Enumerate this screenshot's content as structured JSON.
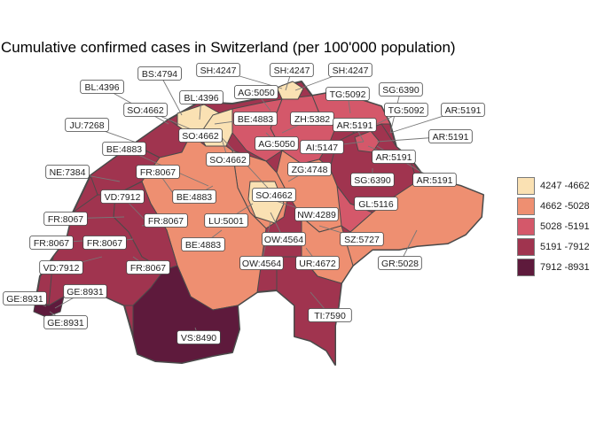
{
  "title": "Cumulative confirmed cases in Switzerland (per 100'000 population)",
  "colors": {
    "class1": "#fae1b3",
    "class2": "#ee8f71",
    "class3": "#d4586a",
    "class4": "#a0344f",
    "class5": "#5e1a3c",
    "border": "#4a4a4a",
    "leader": "#777777"
  },
  "legend": [
    {
      "label": "4247 -4662",
      "color": "#fae1b3"
    },
    {
      "label": "4662 -5028",
      "color": "#ee8f71"
    },
    {
      "label": "5028 -5191",
      "color": "#d4586a"
    },
    {
      "label": "5191 -7912",
      "color": "#a0344f"
    },
    {
      "label": "7912 -8931",
      "color": "#5e1a3c"
    }
  ],
  "labels": [
    {
      "text": "BS:4794"
    },
    {
      "text": "SH:4247"
    },
    {
      "text": "SH:4247"
    },
    {
      "text": "SH:4247"
    },
    {
      "text": "BL:4396"
    },
    {
      "text": "BL:4396"
    },
    {
      "text": "AG:5050"
    },
    {
      "text": "TG:5092"
    },
    {
      "text": "SG:6390"
    },
    {
      "text": "SO:4662"
    },
    {
      "text": "BE:4883"
    },
    {
      "text": "TG:5092"
    },
    {
      "text": "AR:5191"
    },
    {
      "text": "JU:7268"
    },
    {
      "text": "ZH:5382"
    },
    {
      "text": "AR:5191"
    },
    {
      "text": "SO:4662"
    },
    {
      "text": "AR:5191"
    },
    {
      "text": "BE:4883"
    },
    {
      "text": "AG:5050"
    },
    {
      "text": "AI:5147"
    },
    {
      "text": "SO:4662"
    },
    {
      "text": "AR:5191"
    },
    {
      "text": "NE:7384"
    },
    {
      "text": "FR:8067"
    },
    {
      "text": "ZG:4748"
    },
    {
      "text": "SG:6390"
    },
    {
      "text": "AR:5191"
    },
    {
      "text": "VD:7912"
    },
    {
      "text": "BE:4883"
    },
    {
      "text": "SO:4662"
    },
    {
      "text": "FR:8067"
    },
    {
      "text": "FR:8067"
    },
    {
      "text": "LU:5001"
    },
    {
      "text": "NW:4289"
    },
    {
      "text": "GL:5116"
    },
    {
      "text": "FR:8067"
    },
    {
      "text": "FR:8067"
    },
    {
      "text": "BE:4883"
    },
    {
      "text": "OW:4564"
    },
    {
      "text": "SZ:5727"
    },
    {
      "text": "VD:7912"
    },
    {
      "text": "FR:8067"
    },
    {
      "text": "OW:4564"
    },
    {
      "text": "UR:4672"
    },
    {
      "text": "GR:5028"
    },
    {
      "text": "GE:8931"
    },
    {
      "text": "GE:8931"
    },
    {
      "text": "TI:7590"
    },
    {
      "text": "GE:8931"
    },
    {
      "text": "VS:8490"
    }
  ]
}
